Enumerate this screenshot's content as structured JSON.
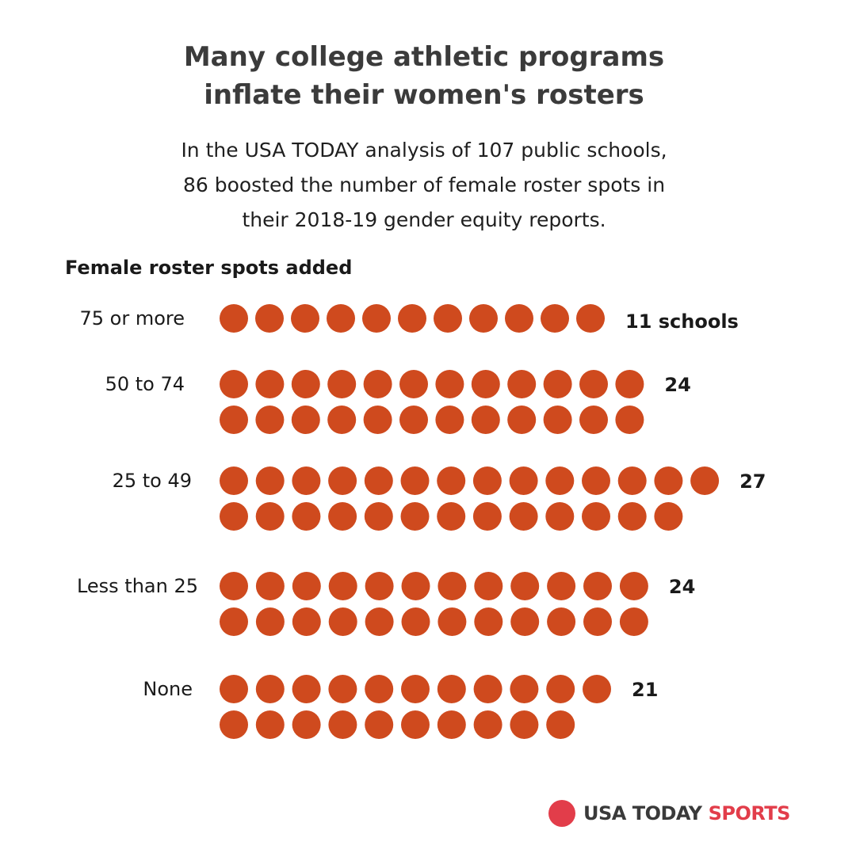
{
  "colors": {
    "dot": "#cf4a1e",
    "logo_dot": "#e23d4a",
    "logo_text": "#3a3a3a",
    "logo_sports": "#e23d4a"
  },
  "title_line1": "Many college athletic programs",
  "title_line2": "inflate their women's rosters",
  "subtitle_line1": "In the USA TODAY analysis of 107 public schools,",
  "subtitle_line2": "86 boosted the number of female roster spots in",
  "subtitle_line3": "their 2018-19 gender equity reports.",
  "chart_data": {
    "type": "bar",
    "title": "Many college athletic programs inflate their women's rosters",
    "subtitle": "In the USA TODAY analysis of 107 public schools, 86 boosted the number of female roster spots in their 2018-19 gender equity reports.",
    "ylabel": "Female roster spots added",
    "unit": "schools",
    "categories": [
      "75 or more",
      "50 to 74",
      "25 to 49",
      "Less than 25",
      "None"
    ],
    "values": [
      11,
      24,
      27,
      24,
      21
    ],
    "value_labels": [
      "11 schools",
      "24",
      "27",
      "24",
      "21"
    ],
    "first_row_counts": [
      11,
      12,
      14,
      12,
      11
    ]
  },
  "branding": {
    "usa_today": "USA TODAY",
    "sports": "SPORTS"
  }
}
